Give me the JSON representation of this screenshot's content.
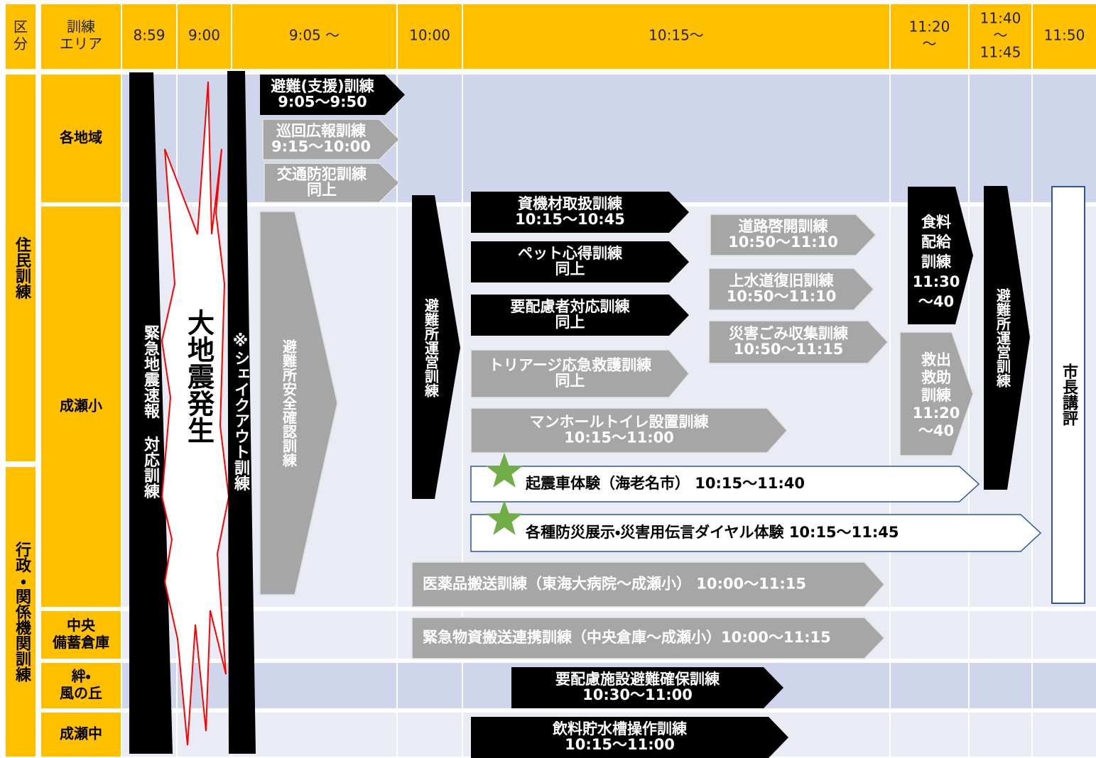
{
  "header": [
    [
      "区",
      "分"
    ],
    [
      "訓練",
      "エリア"
    ],
    [
      "8:59"
    ],
    [
      "9:00"
    ],
    [
      "9:05 〜"
    ],
    [
      "10:00"
    ],
    [
      "10:15〜"
    ],
    [
      "11:20",
      "〜"
    ],
    [
      "11:40",
      "〜",
      "11:45"
    ],
    [
      "11:50"
    ]
  ],
  "sections": [
    "住民訓練",
    "行政・関係機関訓練"
  ],
  "areas": [
    [
      "各地域"
    ],
    [
      "成瀬小"
    ],
    [
      "中央",
      "備蓄倉庫"
    ],
    [
      "絆・",
      "風の丘"
    ],
    [
      "成瀬中"
    ]
  ],
  "vertical_bars": [
    "緊急地震速報 対応訓練",
    "大地震発生",
    "※シェイクアウト訓練",
    "避難所安全確認訓練",
    "避難所運営訓練",
    "避難所運営訓練",
    "市長講評"
  ],
  "drills": [
    {
      "lines": [
        "避難(支援)訓練",
        "9:05〜9:50"
      ]
    },
    {
      "lines": [
        "巡回広報訓練",
        "9:15〜10:00"
      ]
    },
    {
      "lines": [
        "交通防犯訓練",
        "同上"
      ]
    },
    {
      "lines": [
        "資機材取扱訓練",
        "10:15〜10:45"
      ]
    },
    {
      "lines": [
        "ペット心得訓練",
        "同上"
      ]
    },
    {
      "lines": [
        "要配慮者対応訓練",
        "同上"
      ]
    },
    {
      "lines": [
        "トリアージ応急救護訓練",
        "同上"
      ]
    },
    {
      "lines": [
        "マンホールトイレ設置訓練",
        "10:15〜11:00"
      ]
    },
    {
      "lines": [
        "起震車体験（海老名市） 10:15〜11:40"
      ]
    },
    {
      "lines": [
        "各種防災展示・災害用伝言ダイヤル体験  10:15〜11:45"
      ]
    },
    {
      "lines": [
        "医薬品搬送訓練（東海大病院〜成瀬小） 10:00〜11:15"
      ]
    },
    {
      "lines": [
        "緊急物資搬送連携訓練（中央倉庫〜成瀬小）10:00〜11:15"
      ]
    },
    {
      "lines": [
        "要配慮施設避難確保訓練",
        "10:30〜11:00"
      ]
    },
    {
      "lines": [
        "飲料貯水槽操作訓練",
        "10:15〜11:00"
      ]
    },
    {
      "lines": [
        "道路啓開訓練",
        "10:50〜11:10"
      ]
    },
    {
      "lines": [
        "上水道復旧訓練",
        "10:50〜11:10"
      ]
    },
    {
      "lines": [
        "災害ごみ収集訓練",
        "10:50〜11:15"
      ]
    },
    {
      "lines": [
        "食料",
        "配給",
        "訓練",
        "11:30",
        "〜40"
      ]
    },
    {
      "lines": [
        "救出",
        "救助",
        "訓練",
        "11:20",
        "〜40"
      ]
    }
  ]
}
